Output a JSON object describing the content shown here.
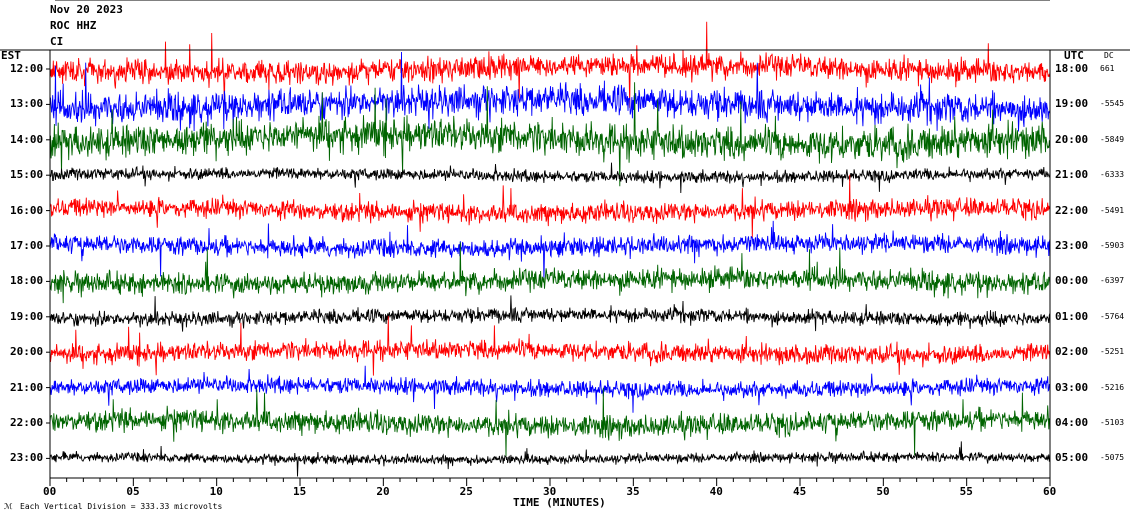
{
  "header": {
    "date": "Nov 20 2023",
    "station": "ROC HHZ",
    "network": "CI"
  },
  "left_timezone": "EST",
  "right_timezone": "UTC",
  "dc_label": "DC",
  "footer": {
    "xlabel": "TIME (MINUTES)",
    "scale_note": "Each Vertical Division =  333.33 microvolts"
  },
  "colors": {
    "trace_cycle": [
      "#ff0000",
      "#0000ff",
      "#006400",
      "#000000"
    ],
    "frame": "#000000",
    "background": "#ffffff"
  },
  "chart_data": {
    "type": "line",
    "title": "",
    "x_ticks": [
      "00",
      "05",
      "10",
      "15",
      "20",
      "25",
      "30",
      "35",
      "40",
      "45",
      "50",
      "55",
      "60"
    ],
    "xlim": [
      0,
      60
    ],
    "rows": [
      {
        "est": "12:00",
        "utc": "18:00",
        "dc": "661",
        "color": "#ff0000",
        "amp": 1.0
      },
      {
        "est": "13:00",
        "utc": "19:00",
        "dc": "-5545",
        "color": "#0000ff",
        "amp": 1.3
      },
      {
        "est": "14:00",
        "utc": "20:00",
        "dc": "-5849",
        "color": "#006400",
        "amp": 1.4
      },
      {
        "est": "15:00",
        "utc": "21:00",
        "dc": "-6333",
        "color": "#000000",
        "amp": 0.5
      },
      {
        "est": "16:00",
        "utc": "22:00",
        "dc": "-5491",
        "color": "#ff0000",
        "amp": 0.8
      },
      {
        "est": "17:00",
        "utc": "23:00",
        "dc": "-5903",
        "color": "#0000ff",
        "amp": 0.8
      },
      {
        "est": "18:00",
        "utc": "00:00",
        "dc": "-6397",
        "color": "#006400",
        "amp": 0.9
      },
      {
        "est": "19:00",
        "utc": "01:00",
        "dc": "-5764",
        "color": "#000000",
        "amp": 0.6
      },
      {
        "est": "20:00",
        "utc": "02:00",
        "dc": "-5251",
        "color": "#ff0000",
        "amp": 0.8
      },
      {
        "est": "21:00",
        "utc": "03:00",
        "dc": "-5216",
        "color": "#0000ff",
        "amp": 0.7
      },
      {
        "est": "22:00",
        "utc": "04:00",
        "dc": "-5103",
        "color": "#006400",
        "amp": 0.9
      },
      {
        "est": "23:00",
        "utc": "05:00",
        "dc": "-5075",
        "color": "#000000",
        "amp": 0.4
      }
    ]
  }
}
